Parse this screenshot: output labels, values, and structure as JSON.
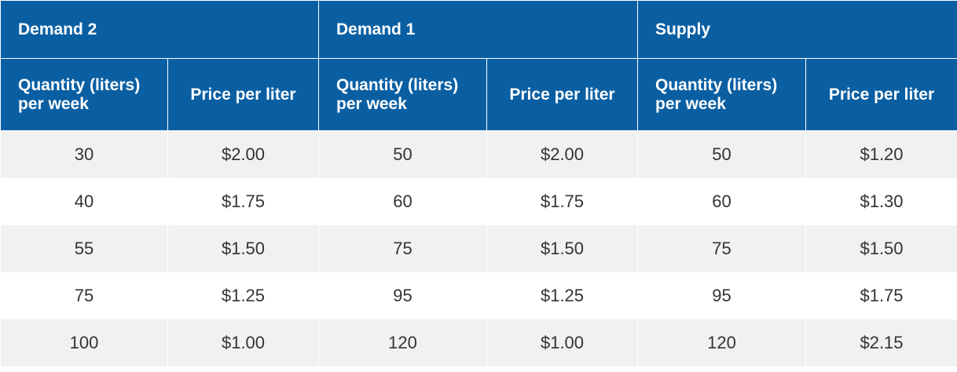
{
  "table": {
    "groups": [
      "Demand 2",
      "Demand 1",
      "Supply"
    ],
    "subheaders": {
      "quantity": "Quantity (liters) per week",
      "price": "Price per liter"
    },
    "rows": [
      [
        "30",
        "$2.00",
        "50",
        "$2.00",
        "50",
        "$1.20"
      ],
      [
        "40",
        "$1.75",
        "60",
        "$1.75",
        "60",
        "$1.30"
      ],
      [
        "55",
        "$1.50",
        "75",
        "$1.50",
        "75",
        "$1.50"
      ],
      [
        "75",
        "$1.25",
        "95",
        "$1.25",
        "95",
        "$1.75"
      ],
      [
        "100",
        "$1.00",
        "120",
        "$1.00",
        "120",
        "$2.15"
      ]
    ]
  },
  "colors": {
    "header_blue": "#0a5fa3",
    "stripe_gray": "#f1f1f1"
  }
}
